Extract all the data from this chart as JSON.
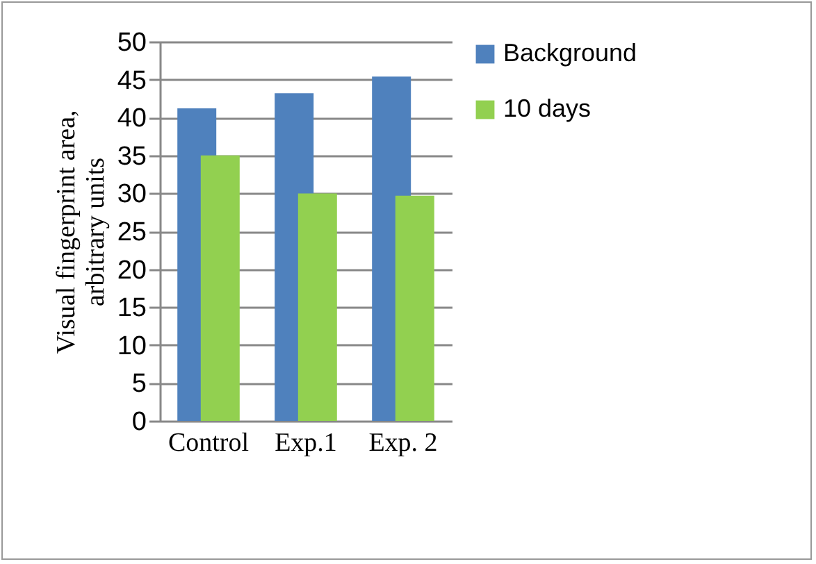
{
  "chart_data": {
    "type": "bar",
    "ylabel": "Visual fingerprint area, arbitrary units",
    "categories": [
      "Control",
      "Exp.1",
      "Exp. 2"
    ],
    "series": [
      {
        "name": "Background",
        "color": "#4f81bd",
        "values": [
          41.2,
          43.2,
          45.4
        ]
      },
      {
        "name": "10 days",
        "color": "#92d050",
        "values": [
          35,
          30,
          29.7
        ]
      }
    ],
    "ylim": [
      0,
      50
    ],
    "yticks": [
      0,
      5,
      10,
      15,
      20,
      25,
      30,
      35,
      40,
      45,
      50
    ],
    "grid": "y",
    "legend": "right"
  }
}
